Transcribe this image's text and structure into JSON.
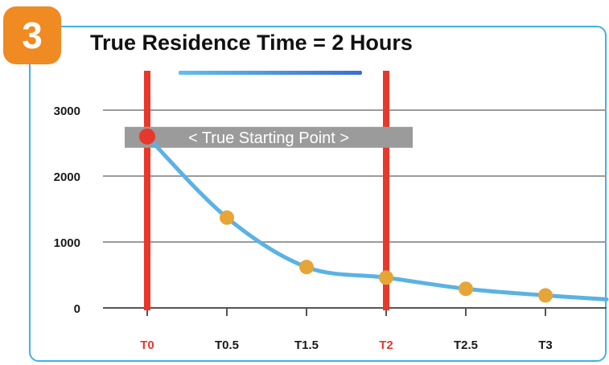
{
  "header": {
    "step_number": "3",
    "title": "True Residence Time = 2 Hours"
  },
  "chart_data": {
    "type": "line",
    "title": "True Residence Time = 2 Hours",
    "xlabel": "",
    "ylabel": "",
    "categories": [
      "T0",
      "T0.5",
      "T1.5",
      "T2",
      "T2.5",
      "T3"
    ],
    "highlighted_categories": [
      "T0",
      "T2"
    ],
    "yticks": [
      0,
      1000,
      2000,
      3000
    ],
    "ylim": [
      0,
      3000
    ],
    "grid": true,
    "series": [
      {
        "values": [
          2600,
          1370,
          620,
          460,
          290,
          190
        ],
        "color": "#5bb2e3"
      }
    ],
    "line_continues_past_last_point_to": 130,
    "annotation": "< True Starting Point >",
    "annotation_y": 2600,
    "colors": {
      "line": "#5bb2e3",
      "marker": "#e6a537",
      "start_marker": "#e8372b",
      "vertical_markers": "#e8372b",
      "highlight_tick": "#e8372b",
      "grid": "#9a9a9a",
      "annotation_bg": "#9b9b9b"
    }
  }
}
